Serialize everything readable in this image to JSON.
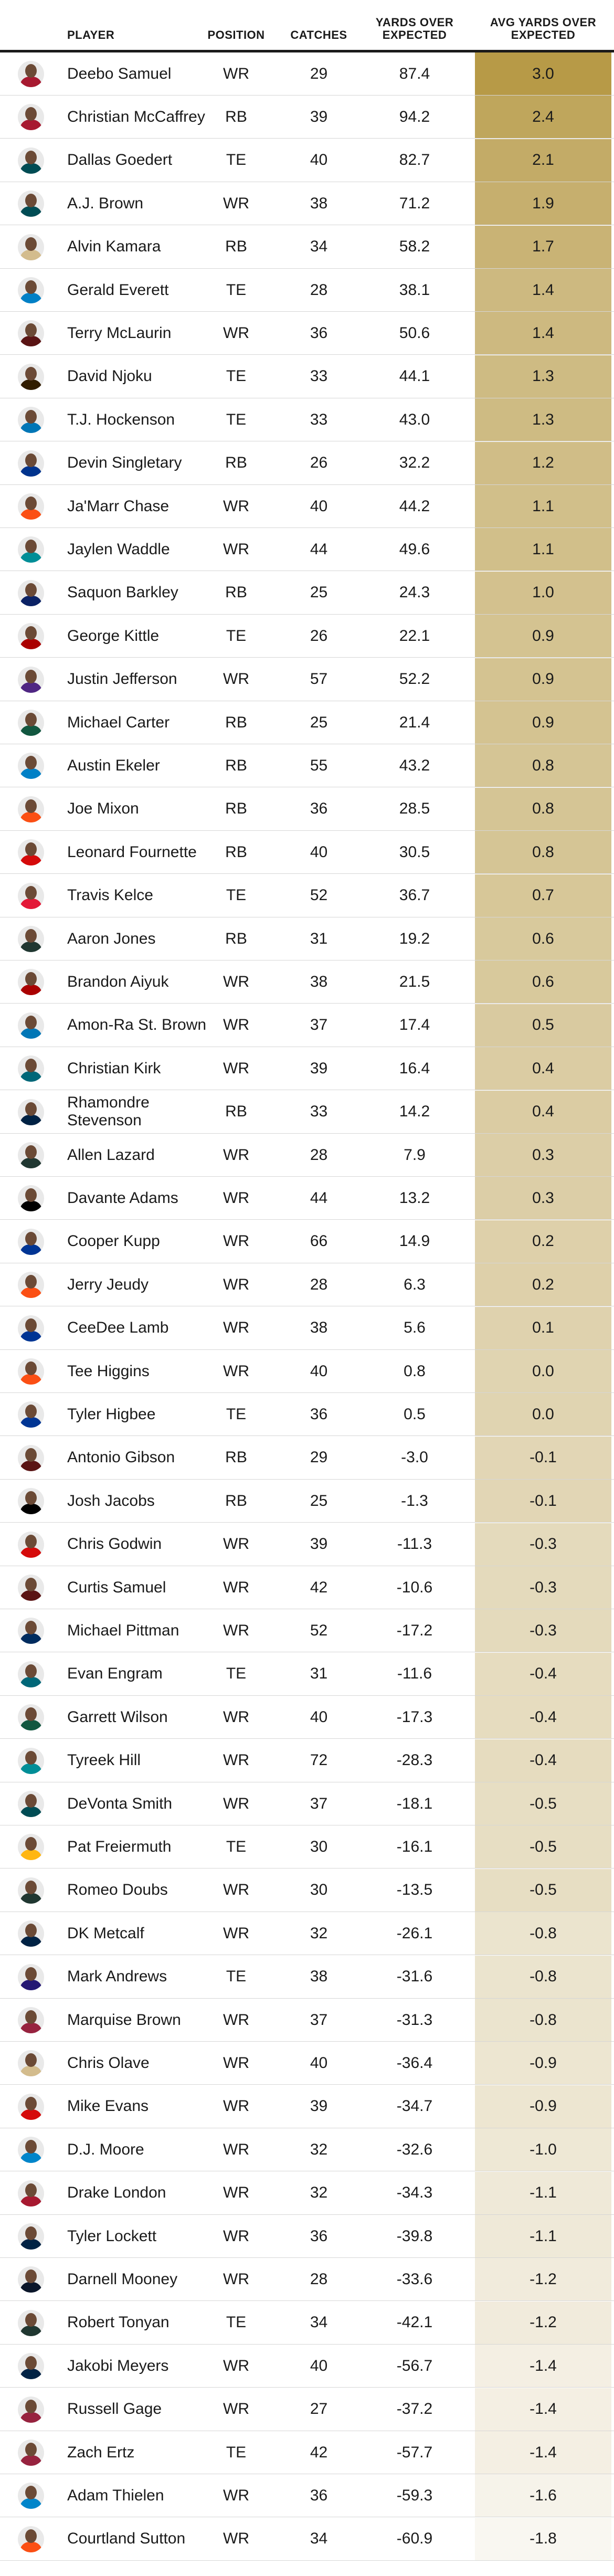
{
  "chart_data": {
    "type": "table",
    "columns": [
      "PLAYER",
      "POSITION",
      "CATCHES",
      "YARDS OVER EXPECTED",
      "AVG YARDS OVER EXPECTED"
    ],
    "rows": [
      {
        "player": "Deebo Samuel",
        "position": "WR",
        "catches": "29",
        "yoe": "87.4",
        "avg": "3.0"
      },
      {
        "player": "Christian McCaffrey",
        "position": "RB",
        "catches": "39",
        "yoe": "94.2",
        "avg": "2.4"
      },
      {
        "player": "Dallas Goedert",
        "position": "TE",
        "catches": "40",
        "yoe": "82.7",
        "avg": "2.1"
      },
      {
        "player": "A.J. Brown",
        "position": "WR",
        "catches": "38",
        "yoe": "71.2",
        "avg": "1.9"
      },
      {
        "player": "Alvin Kamara",
        "position": "RB",
        "catches": "34",
        "yoe": "58.2",
        "avg": "1.7"
      },
      {
        "player": "Gerald Everett",
        "position": "TE",
        "catches": "28",
        "yoe": "38.1",
        "avg": "1.4"
      },
      {
        "player": "Terry McLaurin",
        "position": "WR",
        "catches": "36",
        "yoe": "50.6",
        "avg": "1.4"
      },
      {
        "player": "David Njoku",
        "position": "TE",
        "catches": "33",
        "yoe": "44.1",
        "avg": "1.3"
      },
      {
        "player": "T.J. Hockenson",
        "position": "TE",
        "catches": "33",
        "yoe": "43.0",
        "avg": "1.3"
      },
      {
        "player": "Devin Singletary",
        "position": "RB",
        "catches": "26",
        "yoe": "32.2",
        "avg": "1.2"
      },
      {
        "player": "Ja'Marr Chase",
        "position": "WR",
        "catches": "40",
        "yoe": "44.2",
        "avg": "1.1"
      },
      {
        "player": "Jaylen Waddle",
        "position": "WR",
        "catches": "44",
        "yoe": "49.6",
        "avg": "1.1"
      },
      {
        "player": "Saquon Barkley",
        "position": "RB",
        "catches": "25",
        "yoe": "24.3",
        "avg": "1.0"
      },
      {
        "player": "George Kittle",
        "position": "TE",
        "catches": "26",
        "yoe": "22.1",
        "avg": "0.9"
      },
      {
        "player": "Justin Jefferson",
        "position": "WR",
        "catches": "57",
        "yoe": "52.2",
        "avg": "0.9"
      },
      {
        "player": "Michael Carter",
        "position": "RB",
        "catches": "25",
        "yoe": "21.4",
        "avg": "0.9"
      },
      {
        "player": "Austin Ekeler",
        "position": "RB",
        "catches": "55",
        "yoe": "43.2",
        "avg": "0.8"
      },
      {
        "player": "Joe Mixon",
        "position": "RB",
        "catches": "36",
        "yoe": "28.5",
        "avg": "0.8"
      },
      {
        "player": "Leonard Fournette",
        "position": "RB",
        "catches": "40",
        "yoe": "30.5",
        "avg": "0.8"
      },
      {
        "player": "Travis Kelce",
        "position": "TE",
        "catches": "52",
        "yoe": "36.7",
        "avg": "0.7"
      },
      {
        "player": "Aaron Jones",
        "position": "RB",
        "catches": "31",
        "yoe": "19.2",
        "avg": "0.6"
      },
      {
        "player": "Brandon Aiyuk",
        "position": "WR",
        "catches": "38",
        "yoe": "21.5",
        "avg": "0.6"
      },
      {
        "player": "Amon-Ra St. Brown",
        "position": "WR",
        "catches": "37",
        "yoe": "17.4",
        "avg": "0.5"
      },
      {
        "player": "Christian Kirk",
        "position": "WR",
        "catches": "39",
        "yoe": "16.4",
        "avg": "0.4"
      },
      {
        "player": "Rhamondre Stevenson",
        "position": "RB",
        "catches": "33",
        "yoe": "14.2",
        "avg": "0.4"
      },
      {
        "player": "Allen Lazard",
        "position": "WR",
        "catches": "28",
        "yoe": "7.9",
        "avg": "0.3"
      },
      {
        "player": "Davante Adams",
        "position": "WR",
        "catches": "44",
        "yoe": "13.2",
        "avg": "0.3"
      },
      {
        "player": "Cooper Kupp",
        "position": "WR",
        "catches": "66",
        "yoe": "14.9",
        "avg": "0.2"
      },
      {
        "player": "Jerry Jeudy",
        "position": "WR",
        "catches": "28",
        "yoe": "6.3",
        "avg": "0.2"
      },
      {
        "player": "CeeDee Lamb",
        "position": "WR",
        "catches": "38",
        "yoe": "5.6",
        "avg": "0.1"
      },
      {
        "player": "Tee Higgins",
        "position": "WR",
        "catches": "40",
        "yoe": "0.8",
        "avg": "0.0"
      },
      {
        "player": "Tyler Higbee",
        "position": "TE",
        "catches": "36",
        "yoe": "0.5",
        "avg": "0.0"
      },
      {
        "player": "Antonio Gibson",
        "position": "RB",
        "catches": "29",
        "yoe": "-3.0",
        "avg": "-0.1"
      },
      {
        "player": "Josh Jacobs",
        "position": "RB",
        "catches": "25",
        "yoe": "-1.3",
        "avg": "-0.1"
      },
      {
        "player": "Chris Godwin",
        "position": "WR",
        "catches": "39",
        "yoe": "-11.3",
        "avg": "-0.3"
      },
      {
        "player": "Curtis Samuel",
        "position": "WR",
        "catches": "42",
        "yoe": "-10.6",
        "avg": "-0.3"
      },
      {
        "player": "Michael Pittman",
        "position": "WR",
        "catches": "52",
        "yoe": "-17.2",
        "avg": "-0.3"
      },
      {
        "player": "Evan Engram",
        "position": "TE",
        "catches": "31",
        "yoe": "-11.6",
        "avg": "-0.4"
      },
      {
        "player": "Garrett Wilson",
        "position": "WR",
        "catches": "40",
        "yoe": "-17.3",
        "avg": "-0.4"
      },
      {
        "player": "Tyreek Hill",
        "position": "WR",
        "catches": "72",
        "yoe": "-28.3",
        "avg": "-0.4"
      },
      {
        "player": "DeVonta Smith",
        "position": "WR",
        "catches": "37",
        "yoe": "-18.1",
        "avg": "-0.5"
      },
      {
        "player": "Pat Freiermuth",
        "position": "TE",
        "catches": "30",
        "yoe": "-16.1",
        "avg": "-0.5"
      },
      {
        "player": "Romeo Doubs",
        "position": "WR",
        "catches": "30",
        "yoe": "-13.5",
        "avg": "-0.5"
      },
      {
        "player": "DK Metcalf",
        "position": "WR",
        "catches": "32",
        "yoe": "-26.1",
        "avg": "-0.8"
      },
      {
        "player": "Mark Andrews",
        "position": "TE",
        "catches": "38",
        "yoe": "-31.6",
        "avg": "-0.8"
      },
      {
        "player": "Marquise Brown",
        "position": "WR",
        "catches": "37",
        "yoe": "-31.3",
        "avg": "-0.8"
      },
      {
        "player": "Chris Olave",
        "position": "WR",
        "catches": "40",
        "yoe": "-36.4",
        "avg": "-0.9"
      },
      {
        "player": "Mike Evans",
        "position": "WR",
        "catches": "39",
        "yoe": "-34.7",
        "avg": "-0.9"
      },
      {
        "player": "D.J. Moore",
        "position": "WR",
        "catches": "32",
        "yoe": "-32.6",
        "avg": "-1.0"
      },
      {
        "player": "Drake London",
        "position": "WR",
        "catches": "32",
        "yoe": "-34.3",
        "avg": "-1.1"
      },
      {
        "player": "Tyler Lockett",
        "position": "WR",
        "catches": "36",
        "yoe": "-39.8",
        "avg": "-1.1"
      },
      {
        "player": "Darnell Mooney",
        "position": "WR",
        "catches": "28",
        "yoe": "-33.6",
        "avg": "-1.2"
      },
      {
        "player": "Robert Tonyan",
        "position": "TE",
        "catches": "34",
        "yoe": "-42.1",
        "avg": "-1.2"
      },
      {
        "player": "Jakobi Meyers",
        "position": "WR",
        "catches": "40",
        "yoe": "-56.7",
        "avg": "-1.4"
      },
      {
        "player": "Russell Gage",
        "position": "WR",
        "catches": "27",
        "yoe": "-37.2",
        "avg": "-1.4"
      },
      {
        "player": "Zach Ertz",
        "position": "TE",
        "catches": "42",
        "yoe": "-57.7",
        "avg": "-1.4"
      },
      {
        "player": "Adam Thielen",
        "position": "WR",
        "catches": "36",
        "yoe": "-59.3",
        "avg": "-1.6"
      },
      {
        "player": "Courtland Sutton",
        "position": "WR",
        "catches": "34",
        "yoe": "-60.9",
        "avg": "-1.8"
      }
    ],
    "heat_scale": {
      "min": -1.8,
      "max": 3.0,
      "low_color": "#f9f7f1",
      "high_color": "#b79a47"
    }
  },
  "team_colors": [
    "#a71930",
    "#a71930",
    "#004c54",
    "#004c54",
    "#d3bc8d",
    "#0080c6",
    "#5a1414",
    "#311d00",
    "#0076b6",
    "#00338d",
    "#fb4f14",
    "#008e97",
    "#0b2265",
    "#aa0000",
    "#4f2683",
    "#125740",
    "#0080c6",
    "#fb4f14",
    "#d50a0a",
    "#e31837",
    "#203731",
    "#aa0000",
    "#0076b6",
    "#006778",
    "#002244",
    "#203731",
    "#000000",
    "#003594",
    "#fb4f14",
    "#003594",
    "#fb4f14",
    "#003594",
    "#5a1414",
    "#000000",
    "#d50a0a",
    "#5a1414",
    "#002c5f",
    "#006778",
    "#125740",
    "#008e97",
    "#004c54",
    "#ffb612",
    "#203731",
    "#002244",
    "#241773",
    "#97233f",
    "#d3bc8d",
    "#d50a0a",
    "#0085ca",
    "#a71930",
    "#002244",
    "#0b162a",
    "#203731",
    "#002244",
    "#97233f",
    "#97233f",
    "#0085ca",
    "#fb4f14"
  ]
}
